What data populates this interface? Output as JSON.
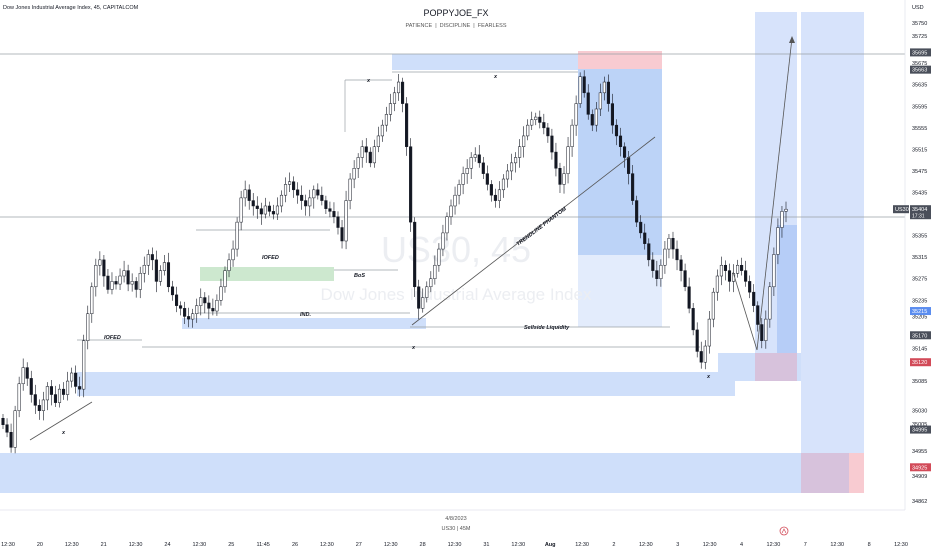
{
  "header": {
    "symbol_line": "Dow Jones Industrial Average Index, 45, CAPITALCOM",
    "author": "POPPYJOE_FX",
    "tagline": "PATIENCE  |  DISCIPLINE  |  FEARLESS"
  },
  "watermark": {
    "symbol": "US30, 45",
    "name": "Dow Jones Industrial Average Index"
  },
  "footer": {
    "date": "4/8/2023",
    "symbol": "US30 | 45M"
  },
  "colors": {
    "up": "#131722",
    "zone_blue": "#b9d0f5",
    "zone_blue_dark": "#9fbdf2",
    "zone_red": "#f7c6cc",
    "zone_green": "#c8e6c9",
    "price_tag_gray": "#4a4f5a",
    "price_tag_red": "#d24a58",
    "price_tag_blue": "#5b8def"
  },
  "chart_data": {
    "type": "candlestick",
    "ylabel": "USD",
    "ylim": [
      34855,
      35770
    ],
    "price_ticks": [
      35750,
      35725,
      35675,
      35635,
      35595,
      35555,
      35515,
      35475,
      35435,
      35395,
      35355,
      35315,
      35275,
      35235,
      35205,
      35170,
      35145,
      35085,
      35030,
      35005,
      34997,
      34955,
      34909,
      34862
    ],
    "x_ticks": [
      "12:30",
      "20",
      "12:30",
      "21",
      "12:30",
      "24",
      "12:30",
      "25",
      "11:45",
      "26",
      "12:30",
      "27",
      "12:30",
      "28",
      "12:30",
      "31",
      "12:30",
      "Aug",
      "12:30",
      "2",
      "12:30",
      "3",
      "12:30",
      "4",
      "12:30",
      "7",
      "12:30",
      "8",
      "12:30"
    ],
    "price_labels": [
      {
        "value": "35695",
        "style": "gray"
      },
      {
        "value": "35663",
        "style": "gray"
      },
      {
        "value": "35404",
        "style": "gray",
        "sub": "17:31",
        "prefix": "US30"
      },
      {
        "value": "35215",
        "style": "blue"
      },
      {
        "value": "35170",
        "style": "gray"
      },
      {
        "value": "35120",
        "style": "red"
      },
      {
        "value": "34995",
        "style": "gray"
      },
      {
        "value": "34925",
        "style": "red"
      }
    ],
    "annotations": [
      "IOFED",
      "BoS",
      "IND.",
      "IOFED",
      "Sellside Liquidity",
      "TRENDLINE PHANTOM",
      "x",
      "x",
      "x",
      "x",
      "x"
    ],
    "closes": [
      35004,
      34990,
      34962,
      35030,
      35080,
      35110,
      35090,
      35060,
      35040,
      35030,
      35050,
      35075,
      35060,
      35045,
      35070,
      35060,
      35085,
      35100,
      35075,
      35070,
      35160,
      35210,
      35260,
      35300,
      35310,
      35280,
      35255,
      35270,
      35265,
      35280,
      35290,
      35265,
      35270,
      35255,
      35285,
      35300,
      35320,
      35310,
      35270,
      35290,
      35305,
      35260,
      35245,
      35225,
      35220,
      35205,
      35200,
      35210,
      35225,
      35240,
      35230,
      35220,
      35215,
      35235,
      35260,
      35290,
      35310,
      35330,
      35380,
      35425,
      35440,
      35420,
      35410,
      35405,
      35395,
      35410,
      35400,
      35395,
      35410,
      35430,
      35450,
      35455,
      35440,
      35430,
      35420,
      35410,
      35425,
      35440,
      35430,
      35420,
      35405,
      35400,
      35390,
      35370,
      35345,
      35420,
      35460,
      35480,
      35500,
      35520,
      35510,
      35490,
      35520,
      35540,
      35560,
      35580,
      35600,
      35620,
      35640,
      35600,
      35520,
      35380,
      35260,
      35220,
      35240,
      35260,
      35275,
      35300,
      35330,
      35360,
      35390,
      35410,
      35430,
      35450,
      35470,
      35480,
      35500,
      35505,
      35490,
      35470,
      35450,
      35430,
      35420,
      35440,
      35460,
      35475,
      35490,
      35500,
      35520,
      35540,
      35560,
      35570,
      35575,
      35565,
      35555,
      35540,
      35510,
      35480,
      35450,
      35470,
      35520,
      35560,
      35600,
      35650,
      35620,
      35580,
      35560,
      35590,
      35620,
      35640,
      35600,
      35560,
      35540,
      35520,
      35500,
      35470,
      35420,
      35380,
      35360,
      35340,
      35310,
      35290,
      35275,
      35300,
      35330,
      35350,
      35330,
      35310,
      35290,
      35260,
      35220,
      35180,
      35140,
      35120,
      35150,
      35200,
      35250,
      35280,
      35300,
      35290,
      35270,
      35285,
      35300,
      35290,
      35270,
      35250,
      35225,
      35190,
      35160,
      35200,
      35260,
      35320,
      35370,
      35400,
      35404
    ]
  }
}
